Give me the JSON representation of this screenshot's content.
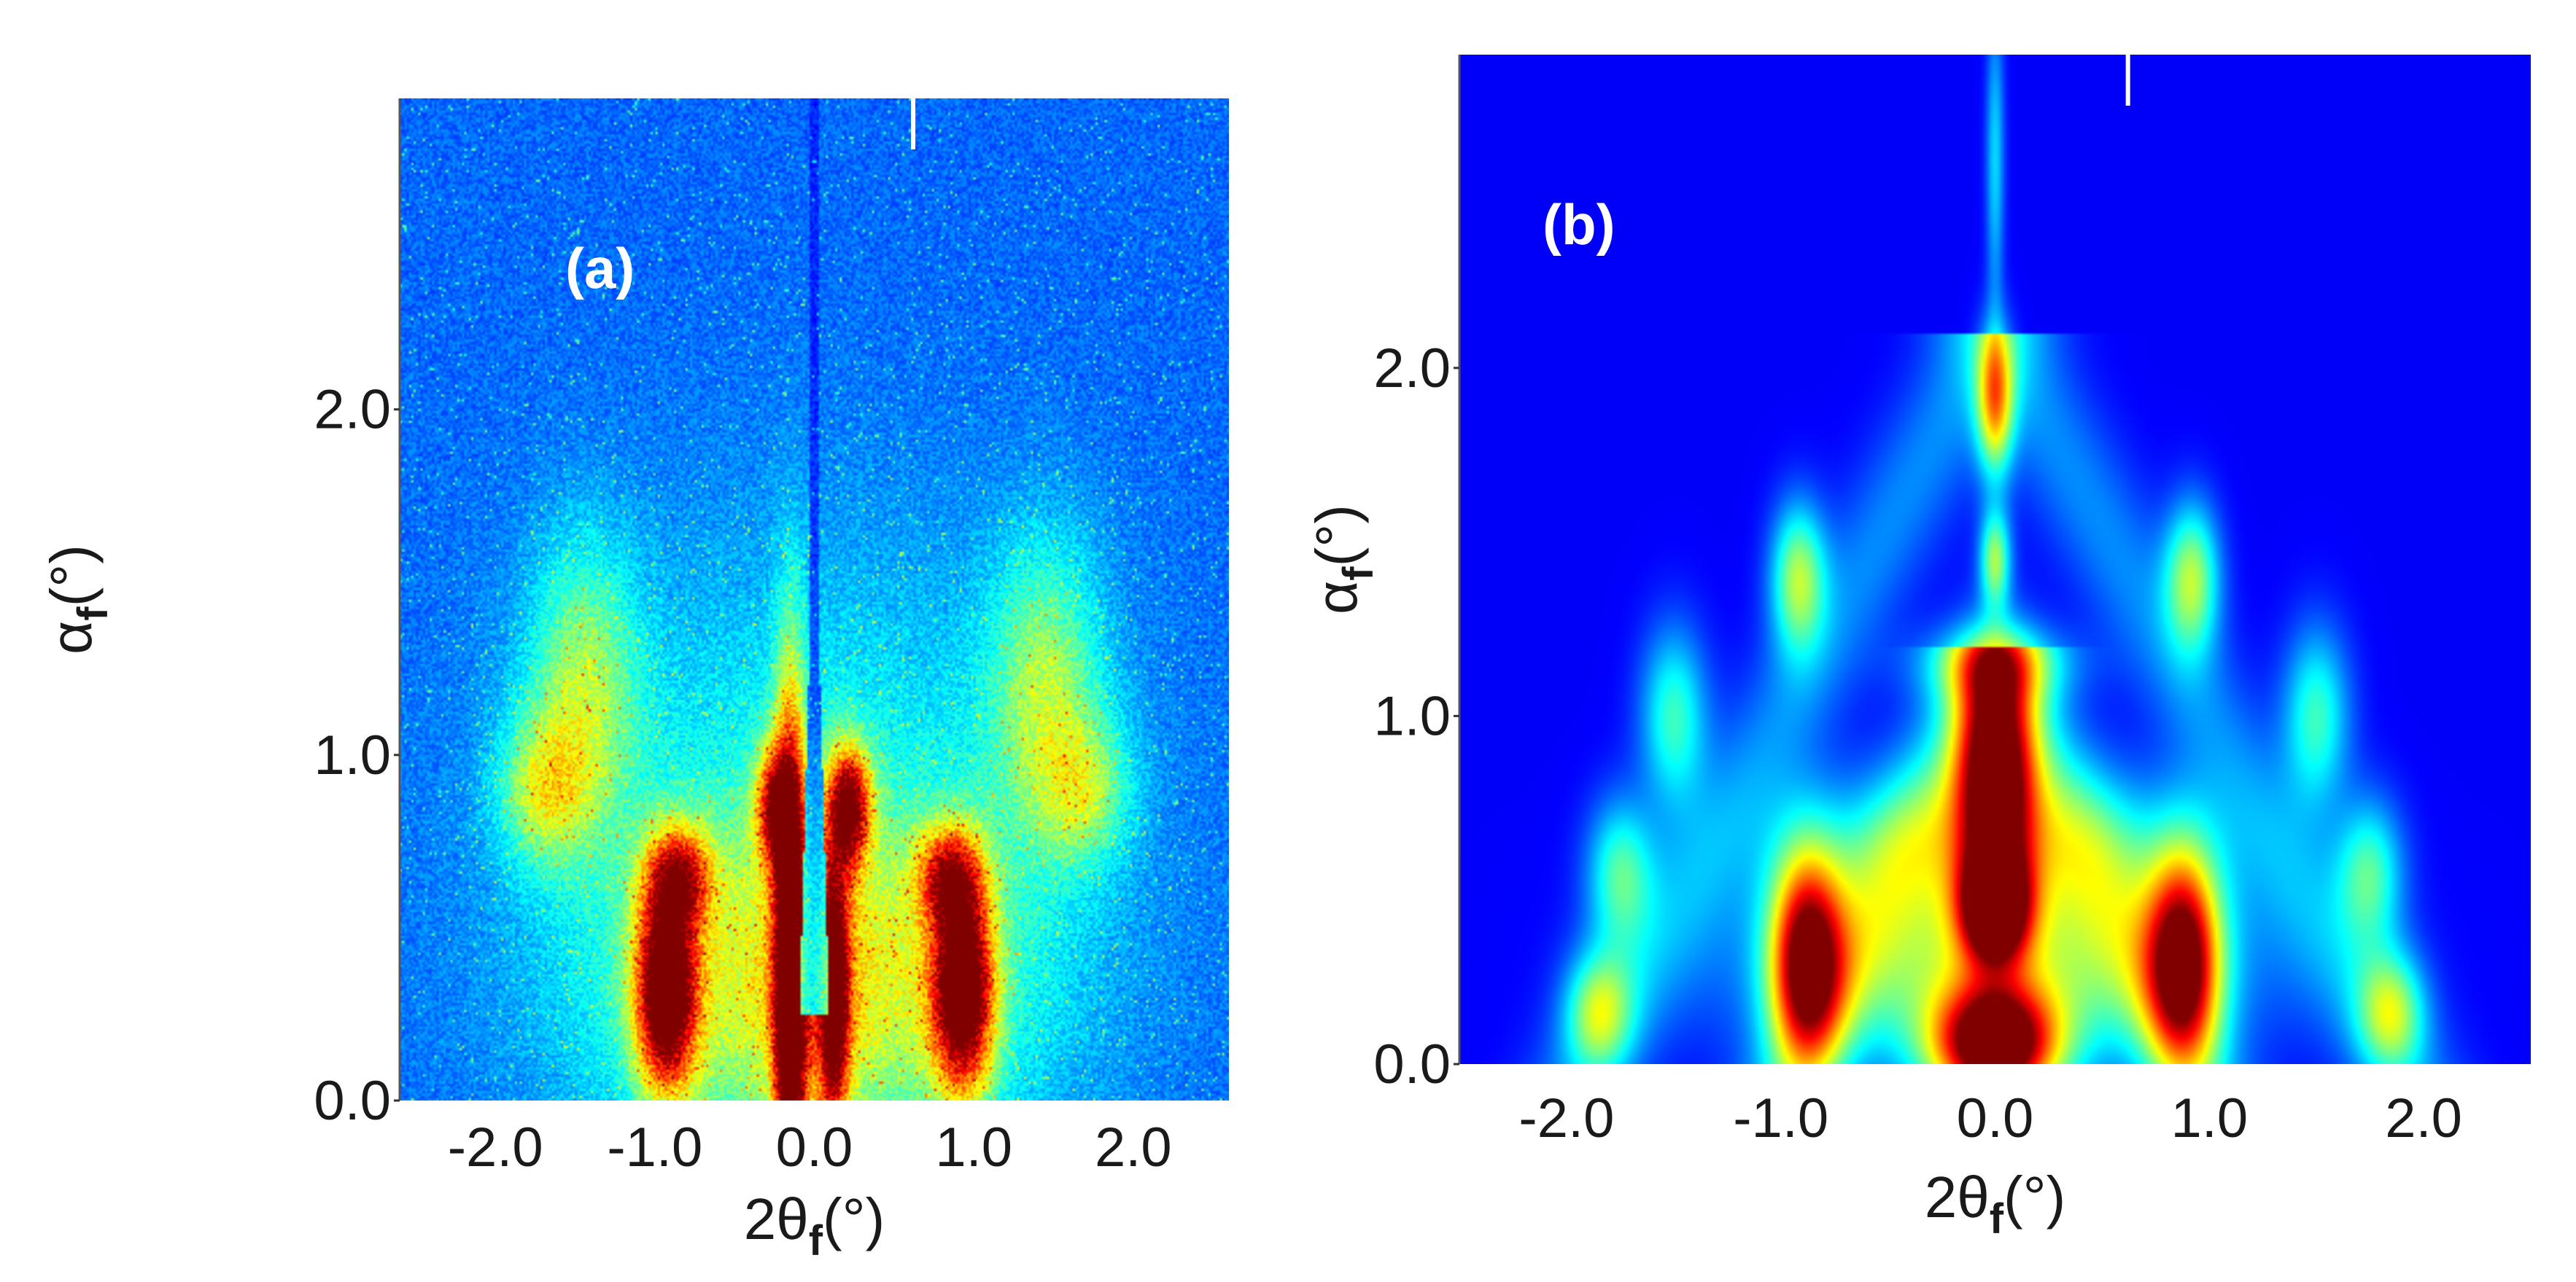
{
  "chart_data": [
    {
      "type": "heatmap",
      "panel_label": "(a)",
      "xlabel": {
        "main": "2θ",
        "sub": "f",
        "unit": "(°)"
      },
      "ylabel": {
        "main": "α",
        "sub": "f",
        "unit": "(°)"
      },
      "xlim": [
        -2.6,
        2.6
      ],
      "ylim": [
        0.0,
        2.9
      ],
      "x_ticks": [
        -2.0,
        -1.0,
        0.0,
        1.0,
        2.0
      ],
      "x_tick_labels": [
        "-2.0",
        "-1.0",
        "0.0",
        "1.0",
        "2.0"
      ],
      "y_ticks": [
        0.0,
        1.0,
        2.0
      ],
      "y_tick_labels": [
        "0.0",
        "1.0",
        "2.0"
      ],
      "colormap": "jet",
      "background_level": 0.12,
      "noise": true,
      "specular_rod": {
        "x": 0.0,
        "y_from": 0.0,
        "y_to": 2.9
      },
      "peaks": [
        {
          "x": -0.93,
          "y": 0.32,
          "wx": 0.13,
          "wy": 0.2,
          "amp": 0.95
        },
        {
          "x": 0.93,
          "y": 0.32,
          "wx": 0.13,
          "wy": 0.2,
          "amp": 0.95
        },
        {
          "x": -0.15,
          "y": 0.35,
          "wx": 0.07,
          "wy": 0.55,
          "amp": 1.0
        },
        {
          "x": 0.12,
          "y": 0.3,
          "wx": 0.07,
          "wy": 0.3,
          "amp": 0.75
        },
        {
          "x": 0.22,
          "y": 0.85,
          "wx": 0.09,
          "wy": 0.12,
          "amp": 0.75
        },
        {
          "x": -0.25,
          "y": 0.85,
          "wx": 0.08,
          "wy": 0.12,
          "amp": 0.6
        },
        {
          "x": -0.85,
          "y": 0.65,
          "wx": 0.14,
          "wy": 0.1,
          "amp": 0.55
        },
        {
          "x": 0.85,
          "y": 0.65,
          "wx": 0.14,
          "wy": 0.1,
          "amp": 0.55
        },
        {
          "x": -1.45,
          "y": 1.2,
          "wx": 0.25,
          "wy": 0.3,
          "amp": 0.3
        },
        {
          "x": 1.45,
          "y": 1.2,
          "wx": 0.25,
          "wy": 0.3,
          "amp": 0.3
        },
        {
          "x": -1.7,
          "y": 0.9,
          "wx": 0.2,
          "wy": 0.15,
          "amp": 0.3
        },
        {
          "x": 1.7,
          "y": 0.9,
          "wx": 0.2,
          "wy": 0.15,
          "amp": 0.25
        },
        {
          "x": 0.0,
          "y": 0.3,
          "wx": 0.9,
          "wy": 0.35,
          "amp": 0.35
        },
        {
          "x": 0.0,
          "y": 0.8,
          "wx": 1.2,
          "wy": 0.6,
          "amp": 0.18
        }
      ]
    },
    {
      "type": "heatmap",
      "panel_label": "(b)",
      "xlabel": {
        "main": "2θ",
        "sub": "f",
        "unit": "(°)"
      },
      "ylabel": {
        "main": "α",
        "sub": "f",
        "unit": "(°)"
      },
      "xlim": [
        -2.5,
        2.5
      ],
      "ylim": [
        0.0,
        2.9
      ],
      "x_ticks": [
        -2.0,
        -1.0,
        0.0,
        1.0,
        2.0
      ],
      "x_tick_labels": [
        "-2.0",
        "-1.0",
        "0.0",
        "1.0",
        "2.0"
      ],
      "y_ticks": [
        0.0,
        1.0,
        2.0
      ],
      "y_tick_labels": [
        "0.0",
        "1.0",
        "2.0"
      ],
      "colormap": "jet",
      "background_level": 0.0,
      "noise": false,
      "peaks": [
        {
          "x": 0.0,
          "y": 0.05,
          "wx": 0.2,
          "wy": 0.12,
          "amp": 1.1
        },
        {
          "x": 0.0,
          "y": 0.45,
          "wx": 0.11,
          "wy": 0.11,
          "amp": 1.0
        },
        {
          "x": 0.0,
          "y": 0.85,
          "wx": 0.13,
          "wy": 0.22,
          "amp": 1.05
        },
        {
          "x": -0.88,
          "y": 0.3,
          "wx": 0.12,
          "wy": 0.22,
          "amp": 0.9
        },
        {
          "x": 0.88,
          "y": 0.3,
          "wx": 0.12,
          "wy": 0.22,
          "amp": 0.9
        },
        {
          "x": 0.0,
          "y": 0.3,
          "wx": 0.75,
          "wy": 0.22,
          "amp": 0.45
        },
        {
          "x": 0.0,
          "y": 0.65,
          "wx": 0.6,
          "wy": 0.15,
          "amp": 0.3
        },
        {
          "x": 0.0,
          "y": 1.45,
          "wx": 0.05,
          "wy": 0.1,
          "amp": 0.45
        },
        {
          "x": 0.0,
          "y": 1.9,
          "wx": 0.06,
          "wy": 0.15,
          "amp": 0.55
        },
        {
          "x": 0.0,
          "y": 2.6,
          "wx": 0.03,
          "wy": 0.3,
          "amp": 0.25
        },
        {
          "x": -0.92,
          "y": 1.4,
          "wx": 0.09,
          "wy": 0.15,
          "amp": 0.45
        },
        {
          "x": 0.92,
          "y": 1.4,
          "wx": 0.09,
          "wy": 0.15,
          "amp": 0.45
        },
        {
          "x": -1.5,
          "y": 1.0,
          "wx": 0.11,
          "wy": 0.18,
          "amp": 0.35
        },
        {
          "x": 1.5,
          "y": 1.0,
          "wx": 0.11,
          "wy": 0.18,
          "amp": 0.35
        },
        {
          "x": -1.75,
          "y": 0.55,
          "wx": 0.11,
          "wy": 0.15,
          "amp": 0.35
        },
        {
          "x": 1.75,
          "y": 0.55,
          "wx": 0.11,
          "wy": 0.15,
          "amp": 0.35
        },
        {
          "x": -1.85,
          "y": 0.15,
          "wx": 0.11,
          "wy": 0.12,
          "amp": 0.4
        },
        {
          "x": 1.85,
          "y": 0.15,
          "wx": 0.11,
          "wy": 0.12,
          "amp": 0.4
        },
        {
          "x": 0.0,
          "y": 1.15,
          "wx": 0.25,
          "wy": 0.08,
          "amp": 0.3
        }
      ],
      "arcs": [
        {
          "x0": 0.0,
          "y0": 1.2,
          "dxdy": 0.75,
          "width": 0.18,
          "y_from": 0.0,
          "y_to": 1.2,
          "amp": 0.2
        },
        {
          "x0": 0.0,
          "y0": 2.1,
          "dxdy": 0.9,
          "width": 0.2,
          "y_from": 0.0,
          "y_to": 2.1,
          "amp": 0.16
        }
      ]
    }
  ]
}
